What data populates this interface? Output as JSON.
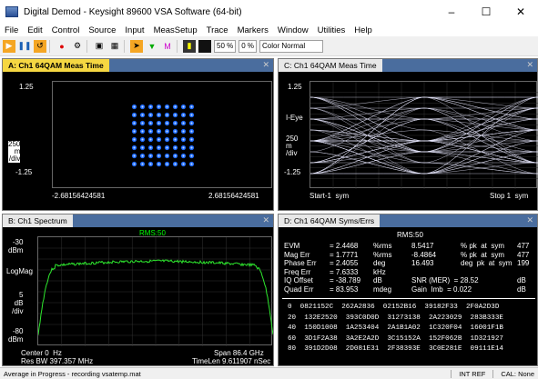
{
  "window": {
    "title": "Digital Demod - Keysight 89600 VSA Software (64-bit)",
    "min": "–",
    "max": "☐",
    "close": "✕"
  },
  "menu": [
    "File",
    "Edit",
    "Control",
    "Source",
    "Input",
    "MeasSetup",
    "Trace",
    "Markers",
    "Window",
    "Utilities",
    "Help"
  ],
  "toolbar": {
    "zoom1": "50 %",
    "zoom2": "0 %",
    "color": "Color Normal"
  },
  "panelA": {
    "tab": "A: Ch1 64QAM Meas Time",
    "ytop": "1.25",
    "yscale": "250\nm\n/div",
    "ybot": "-1.25",
    "xleft": "-2.68156424581",
    "xright": "2.68156424581"
  },
  "panelC": {
    "tab": "C: Ch1 64QAM Meas Time",
    "ytop": "1.25",
    "ylabel": "I-Eye",
    "yscale": "250\nm\n/div",
    "ybot": "-1.25",
    "xleft": "Start-1  sym",
    "xright": "Stop 1  sym"
  },
  "panelB": {
    "tab": "B: Ch1 Spectrum",
    "rms": "RMS:50",
    "ytop": "-30\ndBm",
    "ymid": "LogMag",
    "yscale": "5\ndB\n/div",
    "ybot": "-80\ndBm",
    "center": "Center 0  Hz",
    "span": "Span 86.4 GHz",
    "resbw": "Res BW 397.357 MHz",
    "timelen": "TimeLen 9.611907 nSec"
  },
  "panelD": {
    "tab": "D: Ch1 64QAM Syms/Errs",
    "rms": "RMS:50",
    "errs": [
      [
        "EVM",
        "= 2.4468",
        "%rms",
        "8.5417",
        "% pk  at  sym",
        "477"
      ],
      [
        "Mag Err",
        "= 1.7771",
        "%rms",
        "-8.4864",
        "% pk  at  sym",
        "477"
      ],
      [
        "Phase Err",
        "= 2.4055",
        "deg",
        "16.493",
        "deg  pk  at  sym",
        "199"
      ],
      [
        "Freq Err",
        "= 7.6333",
        "kHz",
        "",
        "",
        ""
      ],
      [
        "IQ Offset",
        "= -38.789",
        "dB",
        "SNR (MER)  = 28.52",
        "",
        "dB"
      ],
      [
        "Quad Err",
        "= 83.953",
        "mdeg",
        "Gain  Imb  = 0.022",
        "",
        "dB"
      ]
    ],
    "syms": [
      "0  0821152C  262A2836  02152B16  39182F33  2F0A2D3D",
      "20  132E2520  393C0D0D  31273138  2A223029  283B333E",
      "40  150D1008  1A253404  2A1B1A02  1C320F04  16001F1B",
      "60  3D1F2A38  3A2E2A2D  3C15152A  152F062B  1D321927",
      "80  391D2D08  2D081E31  2F38393E  3C0E281E  09111E14"
    ]
  },
  "status": {
    "left": "Average in Progress - recording vsatemp.mat",
    "ref": "INT REF",
    "cal": "CAL: None"
  }
}
